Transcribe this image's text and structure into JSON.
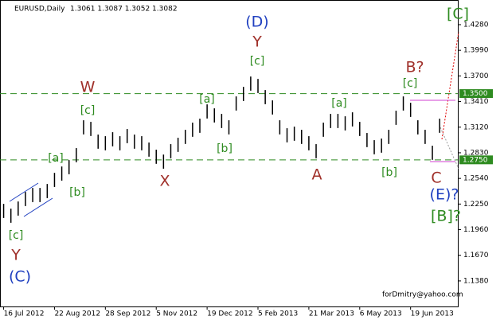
{
  "chart_data": {
    "type": "ohlc",
    "title": "EURUSD,Daily",
    "quote": "1.3061 1.3087 1.3052 1.3082",
    "x": [
      0,
      4,
      8,
      12,
      16,
      20,
      24,
      28,
      32,
      36,
      40,
      44,
      48,
      52,
      56,
      60,
      64,
      68,
      72,
      76,
      80,
      84,
      88,
      92,
      96,
      100,
      104,
      108,
      112,
      116,
      120,
      124,
      128,
      132,
      136,
      140,
      144,
      148,
      152,
      156,
      160,
      164,
      168,
      172,
      176,
      180,
      184,
      188,
      192,
      196,
      200,
      204,
      208,
      212,
      216,
      220,
      224,
      228,
      232,
      236,
      240
    ],
    "high": [
      1.2252,
      1.2198,
      1.2279,
      1.2387,
      1.2432,
      1.2432,
      1.2477,
      1.2603,
      1.2675,
      1.2747,
      1.2883,
      1.3198,
      1.318,
      1.3036,
      1.3018,
      1.3063,
      1.3018,
      1.3099,
      1.3036,
      1.3018,
      1.2946,
      1.2865,
      1.281,
      1.2928,
      1.3,
      1.309,
      1.3171,
      1.3216,
      1.3378,
      1.3333,
      1.327,
      1.3198,
      1.3468,
      1.3576,
      1.3693,
      1.3666,
      1.354,
      1.3423,
      1.3198,
      1.3108,
      1.3126,
      1.309,
      1.3018,
      1.2928,
      1.3171,
      1.327,
      1.327,
      1.3243,
      1.3288,
      1.318,
      1.3054,
      1.2973,
      1.2991,
      1.309,
      1.3306,
      1.3468,
      1.3396,
      1.3198,
      1.309,
      1.291,
      1.3216
    ],
    "low": [
      1.2092,
      1.2038,
      1.2119,
      1.2227,
      1.2272,
      1.2272,
      1.2317,
      1.2443,
      1.2515,
      1.2587,
      1.2723,
      1.3038,
      1.302,
      1.2876,
      1.2858,
      1.2903,
      1.2858,
      1.2939,
      1.2876,
      1.2858,
      1.2786,
      1.2705,
      1.265,
      1.2768,
      1.284,
      1.293,
      1.3011,
      1.3056,
      1.3218,
      1.3173,
      1.311,
      1.3038,
      1.3308,
      1.3416,
      1.3533,
      1.3506,
      1.338,
      1.3263,
      1.3038,
      1.2948,
      1.2966,
      1.293,
      1.2858,
      1.2768,
      1.3011,
      1.311,
      1.311,
      1.3083,
      1.3128,
      1.302,
      1.2894,
      1.2813,
      1.2831,
      1.293,
      1.3146,
      1.3308,
      1.3236,
      1.3038,
      1.293,
      1.275,
      1.3056
    ],
    "color": "#000000",
    "xlim": [
      -2,
      250
    ],
    "xticks": [
      {
        "value": 0,
        "label": "16 Jul 2012"
      },
      {
        "value": 28,
        "label": "22 Aug 2012"
      },
      {
        "value": 56,
        "label": "28 Sep 2012"
      },
      {
        "value": 84,
        "label": "5 Nov 2012"
      },
      {
        "value": 112,
        "label": "19 Dec 2012"
      },
      {
        "value": 140,
        "label": "5 Feb 2013"
      },
      {
        "value": 168,
        "label": "21 Mar 2013"
      },
      {
        "value": 196,
        "label": "6 May 2013"
      },
      {
        "value": 224,
        "label": "19 Jun 2013"
      }
    ],
    "ylim": [
      1.1091,
      1.4559
    ],
    "yticks": [
      {
        "value": 1.428,
        "label": "1.4280"
      },
      {
        "value": 1.399,
        "label": "1.3990"
      },
      {
        "value": 1.37,
        "label": "1.3700"
      },
      {
        "value": 1.341,
        "label": "1.3410"
      },
      {
        "value": 1.312,
        "label": "1.3120"
      },
      {
        "value": 1.283,
        "label": "1.2830"
      },
      {
        "value": 1.254,
        "label": "1.2540"
      },
      {
        "value": 1.225,
        "label": "1.2250"
      },
      {
        "value": 1.196,
        "label": "1.1960"
      },
      {
        "value": 1.167,
        "label": "1.1670"
      },
      {
        "value": 1.138,
        "label": "1.1380"
      }
    ],
    "levels": [
      {
        "value": 1.35,
        "label": "1.3500",
        "color": "#2e8b20"
      },
      {
        "value": 1.275,
        "label": "1.2750",
        "color": "#2e8b20"
      }
    ],
    "annotations": [
      {
        "text": "(D)",
        "color": "#2040c0"
      },
      {
        "text": "Y",
        "color": "#a0302a"
      },
      {
        "text": "[c]",
        "color": "#2e8b20"
      },
      {
        "text": "W",
        "color": "#a0302a"
      },
      {
        "text": "[c]",
        "color": "#2e8b20"
      },
      {
        "text": "[a]",
        "color": "#2e8b20"
      },
      {
        "text": "[b]",
        "color": "#2e8b20"
      },
      {
        "text": "[a]",
        "color": "#2e8b20"
      },
      {
        "text": "[b]",
        "color": "#2e8b20"
      },
      {
        "text": "X",
        "color": "#a0302a"
      },
      {
        "text": "A",
        "color": "#a0302a"
      },
      {
        "text": "[a]",
        "color": "#2e8b20"
      },
      {
        "text": "[b]",
        "color": "#2e8b20"
      },
      {
        "text": "B?",
        "color": "#a0302a"
      },
      {
        "text": "[c]",
        "color": "#2e8b20"
      },
      {
        "text": "C",
        "color": "#a0302a"
      },
      {
        "text": "(E)?",
        "color": "#2040c0"
      },
      {
        "text": "[B]?",
        "color": "#2e8b20"
      },
      {
        "text": "[C]",
        "color": "#2e8b20"
      },
      {
        "text": "[c]",
        "color": "#2e8b20"
      },
      {
        "text": "Y",
        "color": "#a0302a"
      },
      {
        "text": "(C)",
        "color": "#2040c0"
      }
    ],
    "credit": "forDmitry@yahoo.com"
  }
}
